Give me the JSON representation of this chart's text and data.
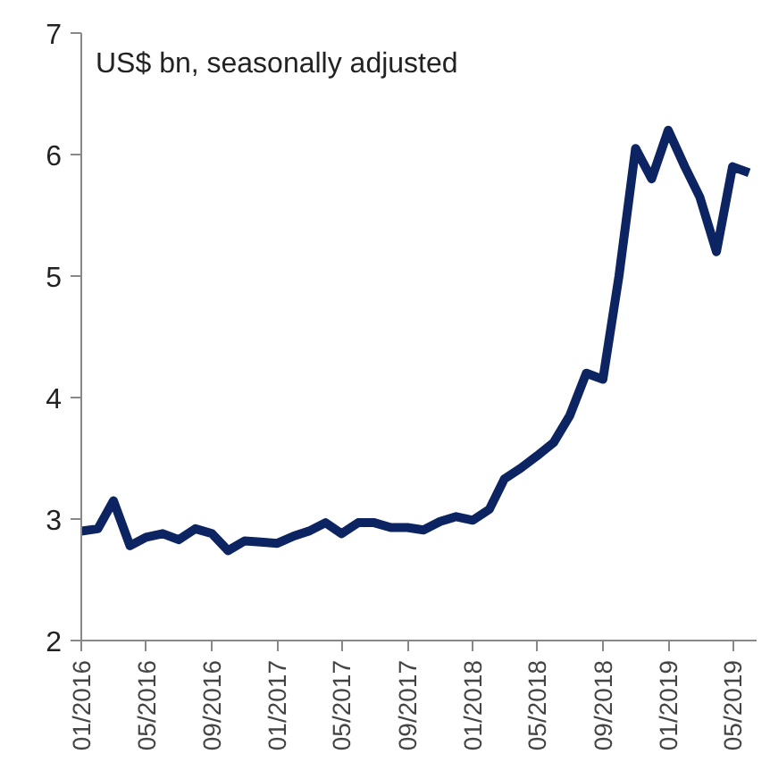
{
  "chart_data": {
    "type": "line",
    "title": "US$ bn, seasonally adjusted",
    "x": [
      "2016-01",
      "2016-02",
      "2016-03",
      "2016-04",
      "2016-05",
      "2016-06",
      "2016-07",
      "2016-08",
      "2016-09",
      "2016-10",
      "2016-11",
      "2016-12",
      "2017-01",
      "2017-02",
      "2017-03",
      "2017-04",
      "2017-05",
      "2017-06",
      "2017-07",
      "2017-08",
      "2017-09",
      "2017-10",
      "2017-11",
      "2017-12",
      "2018-01",
      "2018-02",
      "2018-03",
      "2018-04",
      "2018-05",
      "2018-06",
      "2018-07",
      "2018-08",
      "2018-09",
      "2018-10",
      "2018-11",
      "2018-12",
      "2019-01",
      "2019-02",
      "2019-03",
      "2019-04",
      "2019-05",
      "2019-06"
    ],
    "series": [
      {
        "color": "#0c2461",
        "values": [
          2.9,
          2.92,
          3.15,
          2.78,
          2.85,
          2.88,
          2.83,
          2.92,
          2.88,
          2.74,
          2.82,
          2.81,
          2.8,
          2.86,
          2.9,
          2.97,
          2.88,
          2.97,
          2.97,
          2.93,
          2.93,
          2.91,
          2.98,
          3.02,
          2.99,
          3.08,
          3.33,
          3.42,
          3.52,
          3.63,
          3.85,
          4.2,
          4.15,
          5.0,
          6.05,
          5.8,
          6.2,
          5.9,
          5.65,
          5.2,
          5.9,
          5.85
        ]
      }
    ],
    "xlim": [
      "2016-01",
      "2019-06-15"
    ],
    "xticks": [
      {
        "value": "2016-01",
        "label": "01/2016"
      },
      {
        "value": "2016-05",
        "label": "05/2016"
      },
      {
        "value": "2016-09",
        "label": "09/2016"
      },
      {
        "value": "2017-01",
        "label": "01/2017"
      },
      {
        "value": "2017-05",
        "label": "05/2017"
      },
      {
        "value": "2017-09",
        "label": "09/2017"
      },
      {
        "value": "2018-01",
        "label": "01/2018"
      },
      {
        "value": "2018-05",
        "label": "05/2018"
      },
      {
        "value": "2018-09",
        "label": "09/2018"
      },
      {
        "value": "2019-01",
        "label": "01/2019"
      },
      {
        "value": "2019-05",
        "label": "05/2019"
      }
    ],
    "ylim": [
      2,
      7
    ],
    "yticks": [
      2,
      3,
      4,
      5,
      6,
      7
    ],
    "grid": false,
    "marker": "none",
    "line_style": "solid"
  }
}
